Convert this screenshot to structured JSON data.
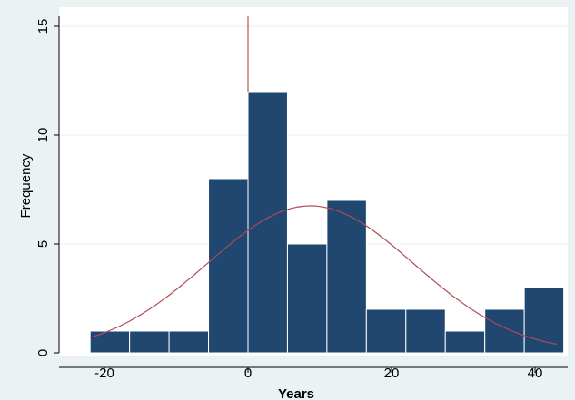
{
  "chart_data": {
    "type": "bar",
    "subtype": "histogram",
    "xlabel": "Years",
    "ylabel": "Frequency",
    "xlim": [
      -24.5,
      44
    ],
    "ylim": [
      0,
      15.5
    ],
    "x_ticks": [
      -20,
      0,
      20,
      40
    ],
    "y_ticks": [
      0,
      5,
      10,
      15
    ],
    "x_tick_labels": [
      "-20",
      "0",
      "20",
      "40"
    ],
    "y_tick_labels": [
      "0",
      "5",
      "10",
      "15"
    ],
    "grid": "horizontal",
    "bin_width": 5.5,
    "bins": [
      {
        "start": -22,
        "end": -16.5,
        "count": 1
      },
      {
        "start": -16.5,
        "end": -11,
        "count": 1
      },
      {
        "start": -11,
        "end": -5.5,
        "count": 1
      },
      {
        "start": -5.5,
        "end": 0,
        "count": 8
      },
      {
        "start": 0,
        "end": 5.5,
        "count": 12
      },
      {
        "start": 5.5,
        "end": 11,
        "count": 5
      },
      {
        "start": 11,
        "end": 16.5,
        "count": 7
      },
      {
        "start": 16.5,
        "end": 22,
        "count": 2
      },
      {
        "start": 22,
        "end": 27.5,
        "count": 2
      },
      {
        "start": 27.5,
        "end": 33,
        "count": 1
      },
      {
        "start": 33,
        "end": 38.5,
        "count": 2
      },
      {
        "start": 38.5,
        "end": 44,
        "count": 3
      }
    ],
    "normal_curve": {
      "mean": 8.7,
      "sd": 14.4,
      "peak": 6.75
    },
    "reference_line_x": 0,
    "colors": {
      "bar_fill": "#1f4770",
      "bar_edge": "#ffffff",
      "curve": "#b04a55",
      "reference_line": "#9b3b2c",
      "plot_background": "#ffffff",
      "outer_background": "#eaf2f3",
      "gridline": "#e8eef1"
    }
  }
}
